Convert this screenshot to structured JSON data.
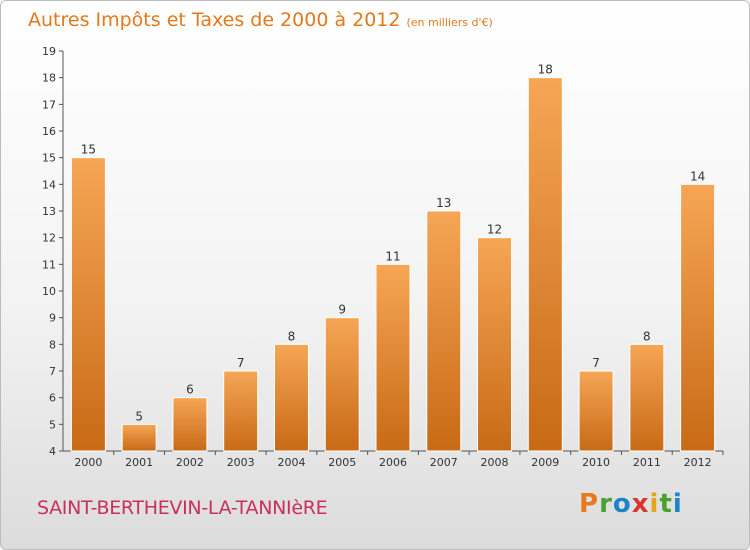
{
  "title": "Autres Impôts et Taxes de 2000 à 2012",
  "subtitle": "(en milliers d'€)",
  "commune": "SAINT-BERTHEVIN-LA-TANNIèRE",
  "brand": {
    "text": "Proxiti",
    "letter_colors": [
      "#e77a1c",
      "#4aa12e",
      "#1f84c7",
      "#d7362b",
      "#e3a51b",
      "#4aa12e",
      "#1f84c7"
    ]
  },
  "colors": {
    "bar_light": "#f6a655",
    "bar_dark": "#c86a16",
    "title": "#e3781c",
    "commune": "#c9305a"
  },
  "chart_data": {
    "type": "bar",
    "categories": [
      "2000",
      "2001",
      "2002",
      "2003",
      "2004",
      "2005",
      "2006",
      "2007",
      "2008",
      "2009",
      "2010",
      "2011",
      "2012"
    ],
    "values": [
      15,
      5,
      6,
      7,
      8,
      9,
      11,
      13,
      12,
      18,
      7,
      8,
      14
    ],
    "title": "Autres Impôts et Taxes de 2000 à 2012",
    "subtitle": "(en milliers d'€)",
    "xlabel": "",
    "ylabel": "",
    "ylim": [
      4,
      19
    ],
    "yticks": [
      4,
      5,
      6,
      7,
      8,
      9,
      10,
      11,
      12,
      13,
      14,
      15,
      16,
      17,
      18,
      19
    ],
    "grid": false,
    "data_labels": true
  }
}
